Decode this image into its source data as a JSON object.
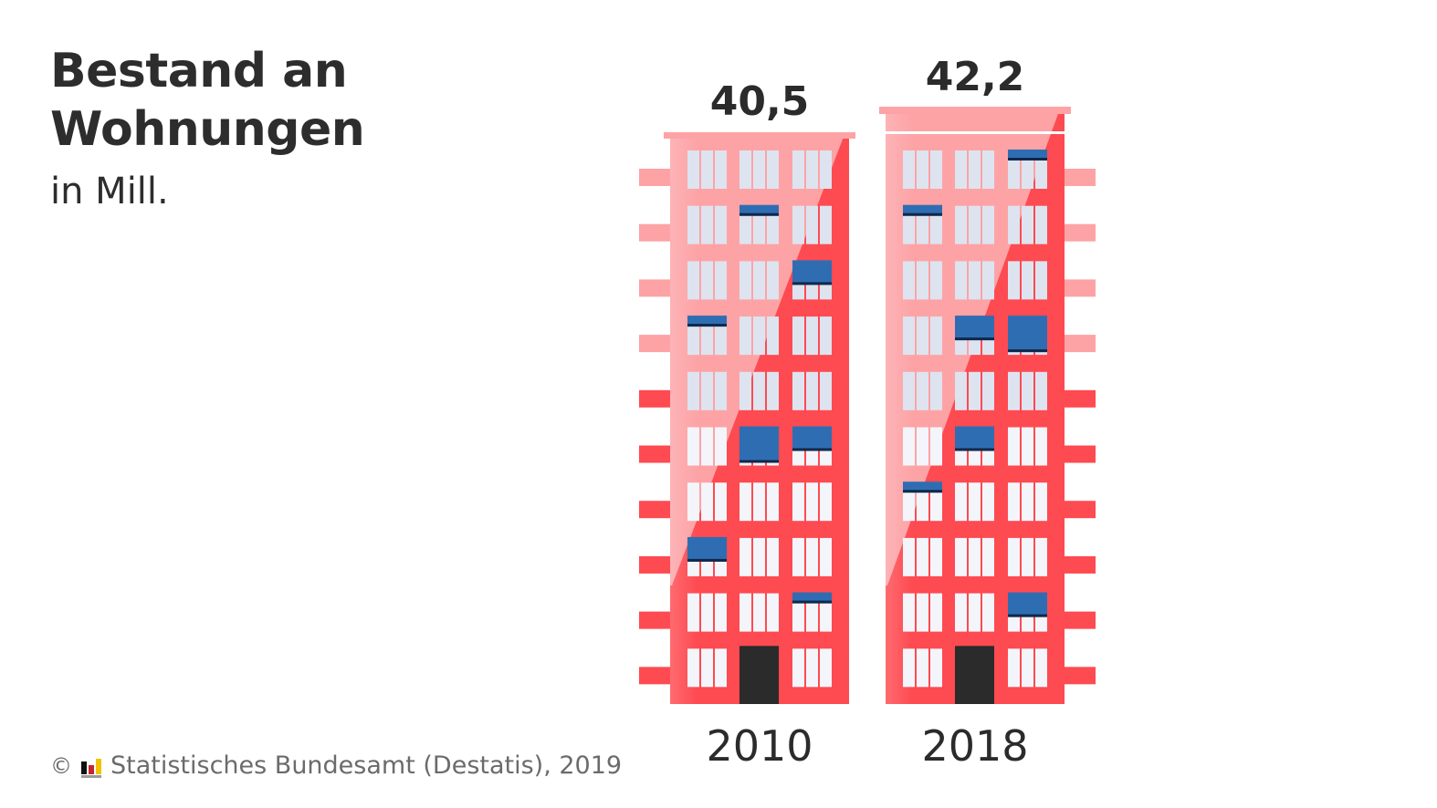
{
  "header": {
    "title_line1": "Bestand an",
    "title_line2": "Wohnungen",
    "subtitle": "in Mill."
  },
  "footer": {
    "copyright_symbol": "©",
    "logo_icon": "destatis-logo-icon",
    "source": "Statistisches Bundesamt (Destatis), 2019"
  },
  "colors": {
    "building_light": "#fda3a6",
    "building_main": "#fe4a51",
    "window": "#dde4f0",
    "window_bright": "#f3f5fa",
    "blind": "#2f6db3",
    "blind_edge": "#10284a",
    "door": "#2b2b2b",
    "text": "#2b2b2b"
  },
  "chart_data": {
    "type": "bar",
    "style": "pictogram (apartment buildings as bars)",
    "title": "Bestand an Wohnungen",
    "subtitle": "in Mill.",
    "unit": "Mill.",
    "categories": [
      "2010",
      "2018"
    ],
    "values": [
      40.5,
      42.2
    ],
    "value_labels": [
      "40,5",
      "42,2"
    ],
    "xlabel": "",
    "ylabel": "",
    "grid": false,
    "legend": "none",
    "buildings": [
      {
        "year": "2010",
        "balcony_side": "left",
        "extra_storey": false,
        "blinds": [
          {
            "floor": 1,
            "col": 1,
            "size": "small"
          },
          {
            "floor": 2,
            "col": 2,
            "size": "large"
          },
          {
            "floor": 3,
            "col": 0,
            "size": "small"
          },
          {
            "floor": 5,
            "col": 1,
            "size": "full"
          },
          {
            "floor": 5,
            "col": 2,
            "size": "large"
          },
          {
            "floor": 7,
            "col": 0,
            "size": "large"
          },
          {
            "floor": 8,
            "col": 2,
            "size": "small"
          }
        ]
      },
      {
        "year": "2018",
        "balcony_side": "right",
        "extra_storey": true,
        "blinds": [
          {
            "floor": 0,
            "col": 2,
            "size": "small"
          },
          {
            "floor": 1,
            "col": 0,
            "size": "small"
          },
          {
            "floor": 3,
            "col": 1,
            "size": "large"
          },
          {
            "floor": 3,
            "col": 2,
            "size": "full"
          },
          {
            "floor": 5,
            "col": 1,
            "size": "large"
          },
          {
            "floor": 6,
            "col": 0,
            "size": "small"
          },
          {
            "floor": 8,
            "col": 2,
            "size": "large"
          }
        ]
      }
    ]
  }
}
